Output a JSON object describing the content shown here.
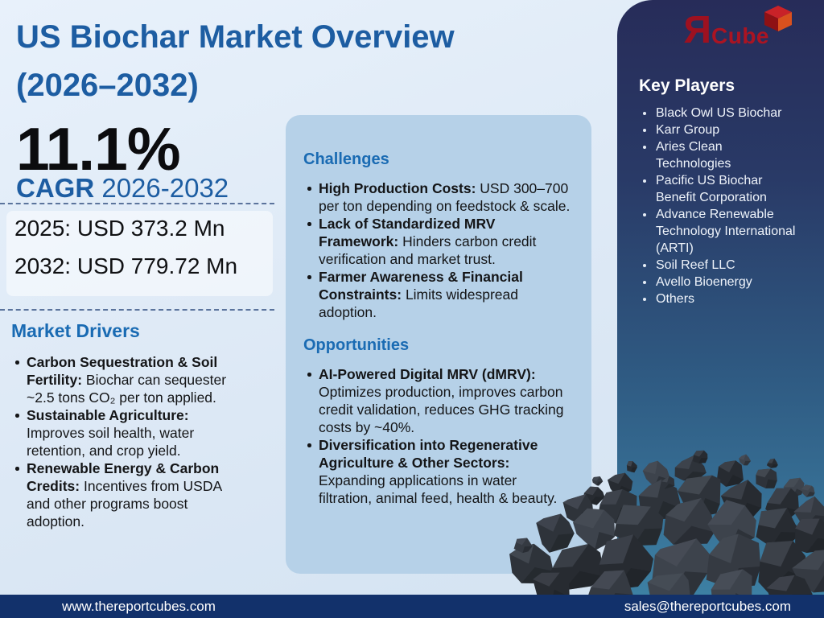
{
  "title": {
    "line1": "US Biochar Market Overview",
    "line2": "(2026–2032)"
  },
  "cagr": {
    "value": "11.1%",
    "label": "CAGR",
    "period": "2026-2032"
  },
  "stats": {
    "year1": "2025: USD 373.2 Mn",
    "year2": "2032: USD 779.72 Mn"
  },
  "drivers": {
    "heading": "Market Drivers",
    "items": [
      {
        "lead": "Carbon Sequestration & Soil Fertility:",
        "text": "Biochar can sequester ~2.5 tons CO₂ per ton applied."
      },
      {
        "lead": "Sustainable Agriculture:",
        "text": "Improves soil health, water retention, and crop yield."
      },
      {
        "lead": "Renewable Energy & Carbon Credits:",
        "text": "Incentives from USDA and other programs boost adoption."
      }
    ]
  },
  "challenges": {
    "heading": "Challenges",
    "items": [
      {
        "lead": "High Production Costs:",
        "text": "USD 300–700 per ton depending on feedstock & scale."
      },
      {
        "lead": "Lack of Standardized MRV Framework:",
        "text": "Hinders carbon credit verification and market trust."
      },
      {
        "lead": "Farmer Awareness & Financial Constraints:",
        "text": "Limits widespread adoption."
      }
    ]
  },
  "opportunities": {
    "heading": "Opportunities",
    "items": [
      {
        "lead": "AI-Powered Digital MRV (dMRV):",
        "text": "Optimizes production, improves carbon credit validation, reduces GHG tracking costs by ~40%."
      },
      {
        "lead": "Diversification into Regenerative Agriculture & Other Sectors:",
        "text": "Expanding applications in water filtration, animal feed, health & beauty."
      }
    ]
  },
  "key_players": {
    "heading": "Key Players",
    "items": [
      "Black Owl US Biochar",
      "Karr Group",
      "Aries Clean Technologies",
      "Pacific US Biochar Benefit Corporation",
      "Advance Renewable Technology International (ARTI)",
      "Soil Reef LLC",
      "Avello Bioenergy",
      "Others"
    ]
  },
  "logo": {
    "r_letter": "Я",
    "cube_text": "Cube",
    "icon": "cube-3d-icon"
  },
  "footer": {
    "website": "www.thereportcubes.com",
    "email": "sales@thereportcubes.com"
  },
  "colors": {
    "title_blue": "#1d5da2",
    "heading_blue": "#1a6bb3",
    "card_bg": "#b6d1e8",
    "panel_top": "#272c59",
    "panel_bottom": "#3d80a3",
    "footer_navy": "#12316b",
    "logo_red": "#9d1120",
    "page_bg": "#dce8f5"
  }
}
